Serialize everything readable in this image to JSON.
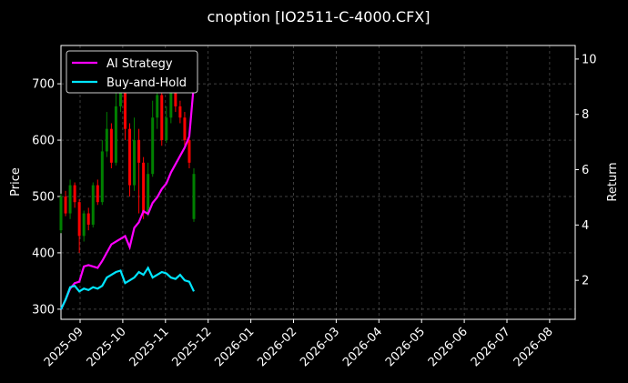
{
  "chart_data": {
    "type": "candlestick",
    "title": "cnoption [IO2511-C-4000.CFX]",
    "y_label": "Price",
    "y2_label": "Return",
    "xticks": [
      "2025-09",
      "2025-10",
      "2025-11",
      "2025-12",
      "2026-01",
      "2026-02",
      "2026-03",
      "2026-04",
      "2026-05",
      "2026-06",
      "2026-07",
      "2026-08"
    ],
    "ylim": [
      282,
      768
    ],
    "yticks": [
      300,
      400,
      500,
      600,
      700
    ],
    "y2lim": [
      0.59,
      10.49
    ],
    "y2ticks": [
      2,
      4,
      6,
      8,
      10
    ],
    "grid": true,
    "legend": "upper left",
    "up_color": "#008000",
    "down_color": "#ff0000",
    "open": [
      440,
      500,
      470,
      520,
      490,
      430,
      470,
      450,
      520,
      490,
      580,
      620,
      560,
      660,
      700,
      620,
      520,
      600,
      560,
      470,
      540,
      640,
      680,
      600,
      640,
      700,
      660,
      640,
      600,
      460
    ],
    "close": [
      500,
      470,
      520,
      490,
      430,
      470,
      450,
      520,
      490,
      580,
      620,
      560,
      660,
      700,
      620,
      520,
      600,
      560,
      470,
      540,
      640,
      680,
      600,
      640,
      700,
      660,
      640,
      600,
      560,
      540
    ],
    "high": [
      505,
      510,
      530,
      525,
      495,
      475,
      480,
      525,
      530,
      600,
      650,
      630,
      690,
      720,
      710,
      630,
      640,
      620,
      570,
      560,
      670,
      700,
      690,
      660,
      720,
      710,
      670,
      650,
      610,
      550
    ],
    "low": [
      435,
      465,
      460,
      480,
      400,
      420,
      440,
      445,
      485,
      485,
      570,
      550,
      555,
      650,
      600,
      500,
      510,
      470,
      460,
      465,
      535,
      620,
      590,
      595,
      630,
      650,
      630,
      590,
      550,
      455
    ],
    "series": [
      {
        "name": "AI Strategy",
        "color": "#ff00ff",
        "axis": "y2",
        "values": [
          0.95,
          1.3,
          1.7,
          1.9,
          1.95,
          2.5,
          2.55,
          2.5,
          2.45,
          2.7,
          3.0,
          3.3,
          3.4,
          3.5,
          3.6,
          3.2,
          3.9,
          4.1,
          4.5,
          4.4,
          4.8,
          5.0,
          5.3,
          5.5,
          5.9,
          6.2,
          6.5,
          6.8,
          7.2,
          9.1
        ]
      },
      {
        "name": "Buy-and-Hold",
        "color": "#00e5ff",
        "axis": "y2",
        "values": [
          0.95,
          1.3,
          1.75,
          1.8,
          1.6,
          1.7,
          1.65,
          1.75,
          1.7,
          1.8,
          2.1,
          2.2,
          2.3,
          2.35,
          1.9,
          2.0,
          2.1,
          2.3,
          2.2,
          2.45,
          2.1,
          2.2,
          2.3,
          2.25,
          2.1,
          2.05,
          2.2,
          2.0,
          1.95,
          1.6
        ]
      }
    ]
  }
}
